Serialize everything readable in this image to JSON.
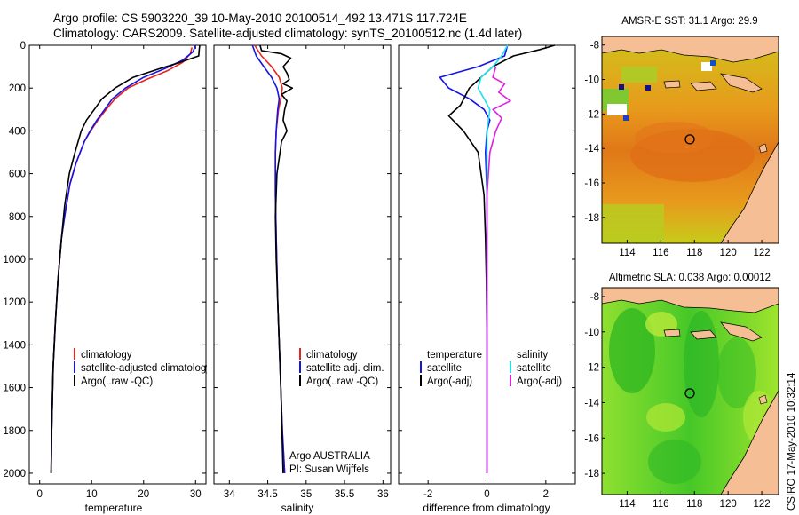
{
  "header": {
    "line1": "Argo profile: CS 5903220_39 10-May-2010 20100514_492 13.471S 117.724E",
    "line2": "Climatology: CARS2009. Satellite-adjusted climatology: synTS_20100512.nc (1.4d later)"
  },
  "colors": {
    "climatology": "#e8231d",
    "satellite": "#1414e6",
    "argo": "#000000",
    "sat_diff": "#22e0ee",
    "argo_adj_diff": "#e020e0",
    "land": "#f5be94"
  },
  "credit": "CSIRO 17-May-2010 10:32:14",
  "chart_data": [
    {
      "id": "temperature",
      "type": "line",
      "xlabel": "temperature",
      "ylabel": "",
      "xlim": [
        -2,
        32
      ],
      "ylim": [
        2050,
        0
      ],
      "xticks": [
        0,
        10,
        20,
        30
      ],
      "yticks": [
        0,
        200,
        400,
        600,
        800,
        1000,
        1200,
        1400,
        1600,
        1800,
        2000
      ],
      "legend": [
        "climatology",
        "satellite-adjusted climatology",
        "Argo(..raw -QC)"
      ],
      "series": [
        {
          "name": "climatology",
          "color_key": "climatology",
          "x": [
            29.3,
            29.0,
            27.5,
            24.5,
            20.5,
            17.0,
            14.5,
            12.8,
            11.2,
            9.8,
            8.6,
            7.0,
            5.8,
            4.8,
            4.2,
            3.5,
            3.0,
            2.6,
            2.3,
            2.2
          ],
          "y": [
            10,
            40,
            80,
            120,
            160,
            200,
            250,
            300,
            350,
            400,
            450,
            550,
            650,
            800,
            900,
            1100,
            1300,
            1500,
            1800,
            2000
          ]
        },
        {
          "name": "satellite-adjusted climatology",
          "color_key": "satellite",
          "x": [
            30.0,
            29.5,
            27.5,
            24.0,
            20.0,
            16.5,
            14.0,
            12.5,
            11.0,
            9.7,
            8.6,
            7.0,
            5.8,
            4.8,
            4.2,
            3.5,
            3.0,
            2.6,
            2.3,
            2.2
          ],
          "y": [
            0,
            30,
            70,
            110,
            150,
            200,
            250,
            300,
            350,
            400,
            450,
            550,
            650,
            800,
            900,
            1100,
            1300,
            1500,
            1800,
            2000
          ]
        },
        {
          "name": "Argo(..raw -QC)",
          "color_key": "argo",
          "x": [
            30.8,
            30.7,
            30.6,
            27.0,
            23.0,
            18.0,
            14.5,
            12.0,
            10.5,
            9.0,
            8.0,
            6.8,
            5.7,
            4.8,
            4.2,
            3.5,
            3.0,
            2.6,
            2.3,
            2.2
          ],
          "y": [
            0,
            20,
            50,
            80,
            110,
            150,
            200,
            250,
            300,
            350,
            400,
            500,
            600,
            750,
            900,
            1100,
            1300,
            1500,
            1800,
            2000
          ]
        }
      ]
    },
    {
      "id": "salinity",
      "type": "line",
      "xlabel": "salinity",
      "ylabel": "",
      "xlim": [
        33.8,
        36.1
      ],
      "ylim": [
        2050,
        0
      ],
      "xticks": [
        34,
        34.5,
        35,
        35.5,
        36
      ],
      "yticks": [
        0,
        200,
        400,
        600,
        800,
        1000,
        1200,
        1400,
        1600,
        1800,
        2000
      ],
      "legend": [
        "climatology",
        "satellite adj. clim.",
        "Argo(..raw -QC)"
      ],
      "annotation": [
        "Argo AUSTRALIA",
        "PI: Susan Wijffels"
      ],
      "series": [
        {
          "name": "climatology",
          "color_key": "climatology",
          "x": [
            34.33,
            34.42,
            34.55,
            34.65,
            34.69,
            34.67,
            34.64,
            34.61,
            34.6,
            34.6,
            34.61,
            34.63,
            34.66,
            34.69,
            34.72
          ],
          "y": [
            0,
            50,
            100,
            150,
            200,
            250,
            300,
            400,
            500,
            700,
            900,
            1200,
            1500,
            1800,
            2000
          ]
        },
        {
          "name": "satellite adj. clim.",
          "color_key": "satellite",
          "x": [
            34.3,
            34.35,
            34.45,
            34.55,
            34.62,
            34.65,
            34.63,
            34.61,
            34.6,
            34.6,
            34.61,
            34.63,
            34.66,
            34.69,
            34.72
          ],
          "y": [
            0,
            50,
            100,
            150,
            200,
            250,
            300,
            400,
            500,
            700,
            900,
            1200,
            1500,
            1800,
            2000
          ]
        },
        {
          "name": "Argo(..raw -QC)",
          "color_key": "argo",
          "x": [
            34.4,
            34.42,
            34.68,
            34.8,
            34.7,
            34.75,
            34.78,
            34.7,
            34.82,
            34.68,
            34.75,
            34.72,
            34.7,
            34.75,
            34.68,
            34.66,
            34.62,
            34.6,
            34.61,
            34.64,
            34.67,
            34.7
          ],
          "y": [
            0,
            25,
            40,
            60,
            100,
            130,
            160,
            180,
            200,
            230,
            260,
            300,
            350,
            400,
            450,
            500,
            600,
            800,
            1000,
            1300,
            1600,
            2000
          ]
        }
      ]
    },
    {
      "id": "difference",
      "type": "line",
      "xlabel": "difference from climatology",
      "ylabel": "",
      "xlim": [
        -3,
        3
      ],
      "ylim": [
        2050,
        0
      ],
      "xticks": [
        -2,
        0,
        2
      ],
      "yticks": [
        0,
        200,
        400,
        600,
        800,
        1000,
        1200,
        1400,
        1600,
        1800,
        2000
      ],
      "legend_left_title": "temperature",
      "legend_right_title": "salinity",
      "legend": [
        "satellite",
        "Argo(-adj)",
        "satellite",
        "Argo(-adj)"
      ],
      "series": [
        {
          "name": "temperature satellite",
          "color_key": "satellite",
          "x": [
            0.7,
            0.6,
            -0.3,
            -1.6,
            -1.3,
            -0.6,
            -0.1,
            0.1,
            0.0,
            -0.05,
            0.0,
            0.0,
            0.0,
            0.0,
            0.0
          ],
          "y": [
            0,
            50,
            100,
            150,
            200,
            250,
            300,
            350,
            400,
            500,
            700,
            1000,
            1400,
            1800,
            2000
          ]
        },
        {
          "name": "temperature Argo(-adj)",
          "color_key": "argo",
          "x": [
            2.3,
            1.8,
            0.9,
            0.2,
            -0.6,
            -0.9,
            -1.3,
            -0.8,
            -0.3,
            -0.1,
            -0.05,
            -0.02,
            0.0,
            0.0,
            0.0
          ],
          "y": [
            0,
            20,
            50,
            100,
            200,
            280,
            330,
            400,
            500,
            700,
            900,
            1100,
            1400,
            1800,
            2000
          ]
        },
        {
          "name": "salinity satellite",
          "color_key": "sat_diff",
          "x": [
            0.7,
            0.5,
            0.2,
            -0.2,
            -0.3,
            -0.1,
            0.1,
            0.0,
            0.0,
            0.0,
            0.0,
            0.0
          ],
          "y": [
            0,
            50,
            100,
            150,
            200,
            250,
            300,
            400,
            600,
            1000,
            1500,
            2000
          ]
        },
        {
          "name": "salinity Argo(-adj)",
          "color_key": "argo_adj_diff",
          "x": [
            0.3,
            0.2,
            0.6,
            0.4,
            0.8,
            0.2,
            0.5,
            0.3,
            0.1,
            0.0,
            0.0,
            0.0
          ],
          "y": [
            100,
            150,
            180,
            220,
            260,
            300,
            340,
            400,
            500,
            700,
            1000,
            2000
          ]
        }
      ]
    },
    {
      "id": "amsr_map",
      "type": "heatmap",
      "title": "AMSR-E SST: 31.1 Argo: 29.9",
      "xticks": [
        114,
        116,
        118,
        120,
        122
      ],
      "yticks": [
        -8,
        -10,
        -12,
        -14,
        -16,
        -18
      ],
      "xlim": [
        112.5,
        123
      ],
      "ylim": [
        -19.5,
        -7.5
      ],
      "profile_lon": 117.724,
      "profile_lat": -13.471
    },
    {
      "id": "sla_map",
      "type": "heatmap",
      "title": "Altimetric SLA: 0.038 Argo: 0.00012",
      "xticks": [
        114,
        116,
        118,
        120,
        122
      ],
      "yticks": [
        -8,
        -10,
        -12,
        -14,
        -16,
        -18
      ],
      "xlim": [
        112.5,
        123
      ],
      "ylim": [
        -19.2,
        -7.5
      ],
      "profile_lon": 117.724,
      "profile_lat": -13.471
    }
  ]
}
